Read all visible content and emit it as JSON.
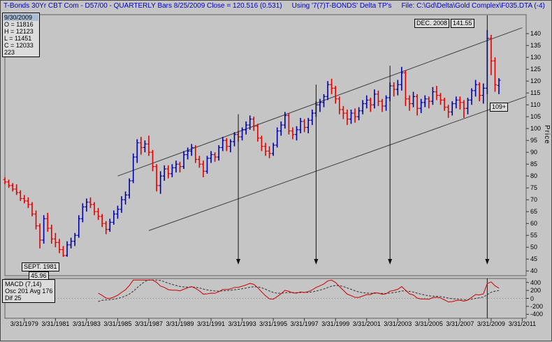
{
  "window": {
    "title_bar": {
      "segment1": "T-Bonds 30Yr CBT Com - D57/00 - QUARTERLY Bars  8/25/2009 Close = 120.516 (0.531)",
      "segment2": "Using '7(7)T-BONDS' Delta TP's",
      "segment3": "File: C:\\Gd\\Delta\\Gold Complex\\F035.DTA (-4)"
    }
  },
  "info_box": {
    "date": "9/30/2009",
    "rows": [
      "O = 11816",
      "H = 12123",
      "L = 11451",
      "C = 12033",
      "223"
    ]
  },
  "annotations": {
    "high_date": "DEC. 2008",
    "high_value": "141.55",
    "channel_value": "109+",
    "low_date": "SEPT. 1981",
    "low_value": "45.96"
  },
  "macd_panel": {
    "title": "MACD (7,14)",
    "osc_avg": "Osc 201 Avg 176",
    "dif": "Dif 25"
  },
  "axes": {
    "price_title": "Price",
    "price_ticks": [
      140,
      135,
      130,
      125,
      120,
      115,
      110,
      105,
      100,
      95,
      90,
      85,
      80,
      75,
      70,
      65,
      60,
      55,
      50,
      45,
      40
    ],
    "macd_ticks": [
      400,
      200,
      0,
      -200,
      -400
    ],
    "x_labels": [
      "3/31/1979",
      "3/31/1981",
      "3/31/1983",
      "3/31/1985",
      "3/31/1987",
      "3/31/1989",
      "3/31/1991",
      "3/31/1993",
      "3/31/1995",
      "3/31/1997",
      "3/31/1999",
      "3/31/2001",
      "3/31/2003",
      "3/31/2005",
      "3/31/2007",
      "3/31/2009",
      "3/31/2011"
    ]
  },
  "colors": {
    "up": "#0000a8",
    "down": "#e00000",
    "macd_osc": "#cc0000",
    "macd_avg": "#303030",
    "channel": "#404040",
    "header_text": "#0000cc"
  },
  "chart_data": {
    "type": "ohlc-bar",
    "title": "T-Bonds 30Yr CBT Com - QUARTERLY Bars",
    "timeframe": "QUARTERLY",
    "x_start_quarter": "12/31/1977",
    "quarters": 128,
    "ylim": [
      40,
      140
    ],
    "bars": [
      [
        78.5,
        79.5,
        76.5,
        77.5
      ],
      [
        77.5,
        78.5,
        75.0,
        76.0
      ],
      [
        76.0,
        77.0,
        73.5,
        74.5
      ],
      [
        74.5,
        76.5,
        72.0,
        73.0
      ],
      [
        73.0,
        74.0,
        69.5,
        70.5
      ],
      [
        70.5,
        72.0,
        68.5,
        69.5
      ],
      [
        69.5,
        71.0,
        66.5,
        68.0
      ],
      [
        68.0,
        69.0,
        63.0,
        64.0
      ],
      [
        64.0,
        65.5,
        57.5,
        59.0
      ],
      [
        59.0,
        60.0,
        49.5,
        53.0
      ],
      [
        53.0,
        63.5,
        51.5,
        62.0
      ],
      [
        62.0,
        64.5,
        56.5,
        58.0
      ],
      [
        58.0,
        59.5,
        51.5,
        53.5
      ],
      [
        53.5,
        56.0,
        50.0,
        52.0
      ],
      [
        52.0,
        53.5,
        47.5,
        49.0
      ],
      [
        49.0,
        50.5,
        45.96,
        46.5
      ],
      [
        46.5,
        52.5,
        46.0,
        51.0
      ],
      [
        51.0,
        54.0,
        49.5,
        52.5
      ],
      [
        52.5,
        56.0,
        50.5,
        55.0
      ],
      [
        55.0,
        63.5,
        54.0,
        62.0
      ],
      [
        62.0,
        68.5,
        60.5,
        67.0
      ],
      [
        67.0,
        70.5,
        65.0,
        69.0
      ],
      [
        69.0,
        71.0,
        66.5,
        68.0
      ],
      [
        68.0,
        69.0,
        63.5,
        65.0
      ],
      [
        65.0,
        66.5,
        61.5,
        63.0
      ],
      [
        63.0,
        64.0,
        58.5,
        60.0
      ],
      [
        60.0,
        61.0,
        55.5,
        57.5
      ],
      [
        57.5,
        62.0,
        56.5,
        60.5
      ],
      [
        60.5,
        65.5,
        59.5,
        64.0
      ],
      [
        64.0,
        67.5,
        62.0,
        66.0
      ],
      [
        66.0,
        71.5,
        64.5,
        70.0
      ],
      [
        70.0,
        73.5,
        68.0,
        72.0
      ],
      [
        72.0,
        79.0,
        70.5,
        78.0
      ],
      [
        78.0,
        89.5,
        77.0,
        88.0
      ],
      [
        88.0,
        95.5,
        85.5,
        94.0
      ],
      [
        94.0,
        96.5,
        89.0,
        92.0
      ],
      [
        92.0,
        95.0,
        90.0,
        93.5
      ],
      [
        93.5,
        97.0,
        88.5,
        90.0
      ],
      [
        90.0,
        91.0,
        82.0,
        84.0
      ],
      [
        84.0,
        85.0,
        73.5,
        76.0
      ],
      [
        76.0,
        82.0,
        72.5,
        80.0
      ],
      [
        80.0,
        84.5,
        78.0,
        83.0
      ],
      [
        83.0,
        84.5,
        79.0,
        81.0
      ],
      [
        81.0,
        85.0,
        79.5,
        83.5
      ],
      [
        83.5,
        86.5,
        81.5,
        85.0
      ],
      [
        85.0,
        86.0,
        81.5,
        84.0
      ],
      [
        84.0,
        90.5,
        83.0,
        89.0
      ],
      [
        89.0,
        92.0,
        87.0,
        90.5
      ],
      [
        90.5,
        93.5,
        88.5,
        92.0
      ],
      [
        92.0,
        93.0,
        85.5,
        87.0
      ],
      [
        87.0,
        88.5,
        83.5,
        85.0
      ],
      [
        85.0,
        86.5,
        79.5,
        82.0
      ],
      [
        82.0,
        88.5,
        81.0,
        87.5
      ],
      [
        87.5,
        90.5,
        85.5,
        89.0
      ],
      [
        89.0,
        90.0,
        86.0,
        88.0
      ],
      [
        88.0,
        93.0,
        86.5,
        92.0
      ],
      [
        92.0,
        96.5,
        90.5,
        95.0
      ],
      [
        95.0,
        96.0,
        90.5,
        92.5
      ],
      [
        92.5,
        95.5,
        90.0,
        94.5
      ],
      [
        94.5,
        98.5,
        92.5,
        97.5
      ],
      [
        97.5,
        99.0,
        94.5,
        96.5
      ],
      [
        96.5,
        100.5,
        95.0,
        99.5
      ],
      [
        99.5,
        103.0,
        97.5,
        101.5
      ],
      [
        101.5,
        105.5,
        99.5,
        104.0
      ],
      [
        104.0,
        105.0,
        99.0,
        101.0
      ],
      [
        101.0,
        102.0,
        94.5,
        96.0
      ],
      [
        96.0,
        97.0,
        90.5,
        92.5
      ],
      [
        92.5,
        94.0,
        88.5,
        90.5
      ],
      [
        90.5,
        92.5,
        87.5,
        89.5
      ],
      [
        89.5,
        94.0,
        88.5,
        93.0
      ],
      [
        93.0,
        100.5,
        92.0,
        99.0
      ],
      [
        99.0,
        103.0,
        97.0,
        101.5
      ],
      [
        101.5,
        107.0,
        100.0,
        105.5
      ],
      [
        105.5,
        106.5,
        97.5,
        99.0
      ],
      [
        99.0,
        100.5,
        95.5,
        97.5
      ],
      [
        97.5,
        101.0,
        95.0,
        99.5
      ],
      [
        99.5,
        104.5,
        98.0,
        103.0
      ],
      [
        103.0,
        104.0,
        98.5,
        100.5
      ],
      [
        100.5,
        104.5,
        98.0,
        103.5
      ],
      [
        103.5,
        108.0,
        101.5,
        106.5
      ],
      [
        106.5,
        111.5,
        105.0,
        110.0
      ],
      [
        110.0,
        112.5,
        107.0,
        111.0
      ],
      [
        111.0,
        114.5,
        109.0,
        113.5
      ],
      [
        113.5,
        120.0,
        112.0,
        118.5
      ],
      [
        118.5,
        121.0,
        114.5,
        117.0
      ],
      [
        117.0,
        118.0,
        110.5,
        112.5
      ],
      [
        112.5,
        113.5,
        106.0,
        108.0
      ],
      [
        108.0,
        109.5,
        104.0,
        106.5
      ],
      [
        106.5,
        108.0,
        101.5,
        104.0
      ],
      [
        104.0,
        108.0,
        102.0,
        106.5
      ],
      [
        106.5,
        108.5,
        102.5,
        105.0
      ],
      [
        105.0,
        109.0,
        103.5,
        107.5
      ],
      [
        107.5,
        112.0,
        106.0,
        110.5
      ],
      [
        110.5,
        114.0,
        108.5,
        112.0
      ],
      [
        112.0,
        113.0,
        107.0,
        110.0
      ],
      [
        110.0,
        116.5,
        108.5,
        114.5
      ],
      [
        114.5,
        116.0,
        109.5,
        111.5
      ],
      [
        111.5,
        112.5,
        107.0,
        109.5
      ],
      [
        109.5,
        114.0,
        107.5,
        113.0
      ],
      [
        113.0,
        119.5,
        111.5,
        118.0
      ],
      [
        118.0,
        119.5,
        113.5,
        116.5
      ],
      [
        116.5,
        120.5,
        114.0,
        118.5
      ],
      [
        118.5,
        126.0,
        116.0,
        123.5
      ],
      [
        123.5,
        124.5,
        109.5,
        112.5
      ],
      [
        112.5,
        114.0,
        107.5,
        110.5
      ],
      [
        110.5,
        115.5,
        109.0,
        113.5
      ],
      [
        113.5,
        114.5,
        105.5,
        108.5
      ],
      [
        108.5,
        112.5,
        106.5,
        111.0
      ],
      [
        111.0,
        114.0,
        109.0,
        112.5
      ],
      [
        112.5,
        113.5,
        108.5,
        111.5
      ],
      [
        111.5,
        117.5,
        110.0,
        115.5
      ],
      [
        115.5,
        118.0,
        112.0,
        114.0
      ],
      [
        114.0,
        115.0,
        110.0,
        112.0
      ],
      [
        112.0,
        113.0,
        107.5,
        109.0
      ],
      [
        109.0,
        110.0,
        104.5,
        107.0
      ],
      [
        107.0,
        111.5,
        105.5,
        110.5
      ],
      [
        110.5,
        113.5,
        108.5,
        112.0
      ],
      [
        112.0,
        113.5,
        108.0,
        111.0
      ],
      [
        111.0,
        112.0,
        104.5,
        108.5
      ],
      [
        108.5,
        113.0,
        106.0,
        112.0
      ],
      [
        112.0,
        117.0,
        110.0,
        116.0
      ],
      [
        116.0,
        120.5,
        113.5,
        118.5
      ],
      [
        118.5,
        119.5,
        111.5,
        114.0
      ],
      [
        114.0,
        119.0,
        110.5,
        117.0
      ],
      [
        117.0,
        141.55,
        114.5,
        138.0
      ],
      [
        138.0,
        139.5,
        122.5,
        128.5
      ],
      [
        128.5,
        130.0,
        115.5,
        118.5
      ],
      [
        118.16,
        121.23,
        114.51,
        120.33
      ]
    ],
    "channel_lines": [
      {
        "name": "upper-channel",
        "from": {
          "date": "3/31/1985",
          "price": 80.0
        },
        "to": {
          "date": "3/31/2011",
          "price": 142.5
        }
      },
      {
        "name": "lower-channel",
        "from": {
          "date": "3/31/1987",
          "price": 57.0
        },
        "to": {
          "date": "6/30/2011",
          "price": 113.5
        }
      }
    ],
    "arrows": [
      {
        "date": "12/31/1992"
      },
      {
        "date": "12/31/1997"
      },
      {
        "date": "9/30/2002"
      },
      {
        "date": "12/31/2008",
        "extends_to_bottom": true
      }
    ],
    "indicator": {
      "type": "MACD",
      "fast": 7,
      "slow": 14,
      "values": {
        "osc": 201,
        "avg": 176,
        "dif": 25
      },
      "axis_range": [
        -400,
        400
      ]
    }
  }
}
